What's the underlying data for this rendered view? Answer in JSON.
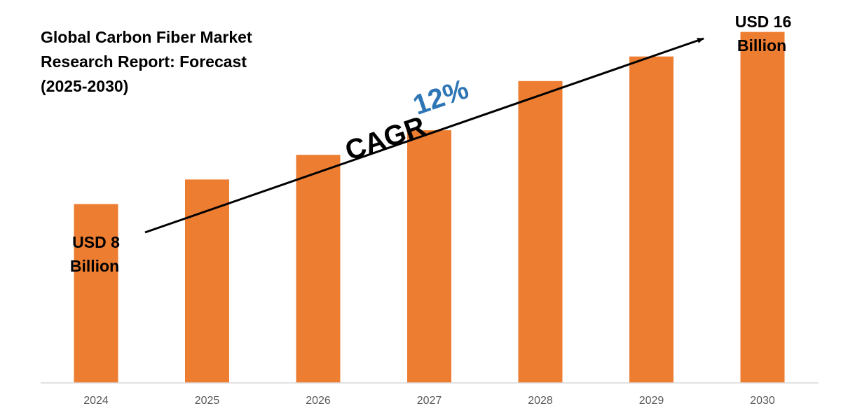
{
  "chart_data": {
    "type": "bar",
    "title_lines": [
      "Global Carbon Fiber Market",
      "Research Report: Forecast",
      "(2025-2030)"
    ],
    "categories": [
      "2024",
      "2025",
      "2026",
      "2027",
      "2028",
      "2029",
      "2030"
    ],
    "values": [
      8,
      9.1,
      10.2,
      11.3,
      13.5,
      14.6,
      15.7
    ],
    "ylim": [
      0,
      16.5
    ],
    "grid": false,
    "bar_color": "#ED7D31",
    "axis_color": "#D9D9D9",
    "annotations": {
      "start_label_lines": [
        "USD 8",
        "Billion"
      ],
      "end_label_lines": [
        "USD 16",
        "Billion"
      ],
      "cagr_label": "CAGR",
      "cagr_value": "12%",
      "cagr_value_color": "#2E75B6"
    }
  }
}
